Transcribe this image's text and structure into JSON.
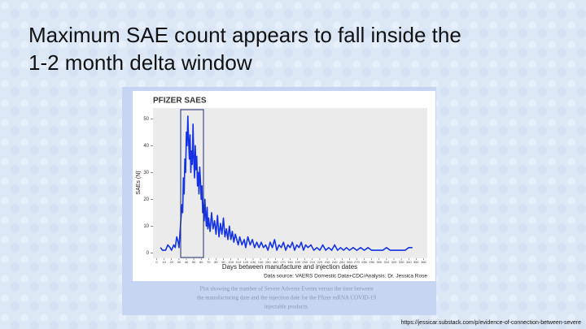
{
  "slide": {
    "title_lines": [
      "Maximum SAE count appears to fall inside the",
      "1-2 month delta window"
    ],
    "caption_lines": [
      "Plot showing the number of Severe Adverse Events versus the time between",
      "the manufacturing date and the injection date for the Pfizer mRNA COVID-19",
      "injectable products."
    ],
    "url": "https://jessicar.substack.com/p/evidence-of-connection-between-severe"
  },
  "chart_data": {
    "type": "line",
    "title": "PFIZER SAES",
    "x_label": "Days between manufacture and injection dates",
    "y_label": "SAEs (N)",
    "source": "Data source: VAERS Domestic Data+CDC/Analysis: Dr. Jessica Rose",
    "color": "#1432e6",
    "x": [
      5,
      8,
      12,
      15,
      18,
      20,
      23,
      25,
      27,
      29,
      30,
      32,
      34,
      35,
      36,
      37,
      38,
      39,
      40,
      41,
      42,
      43,
      44,
      45,
      46,
      47,
      48,
      49,
      50,
      51,
      52,
      53,
      54,
      55,
      56,
      57,
      58,
      59,
      60,
      61,
      62,
      63,
      64,
      65,
      66,
      67,
      68,
      69,
      70,
      72,
      74,
      76,
      78,
      80,
      82,
      84,
      86,
      88,
      90,
      92,
      94,
      96,
      98,
      100,
      102,
      104,
      106,
      108,
      110,
      112,
      115,
      118,
      120,
      123,
      126,
      129,
      132,
      135,
      138,
      141,
      144,
      147,
      150,
      153,
      156,
      159,
      162,
      165,
      168,
      171,
      174,
      177,
      180,
      183,
      186,
      189,
      192,
      195,
      198,
      201,
      204,
      208,
      212,
      216,
      220,
      224,
      228,
      232,
      236,
      240,
      244,
      248,
      252,
      256,
      260,
      265,
      270,
      275,
      280,
      285,
      290,
      295,
      300,
      305,
      310,
      315,
      320,
      325,
      330,
      335,
      340,
      345
    ],
    "values": [
      2,
      1,
      1,
      3,
      2,
      1,
      3,
      2,
      6,
      4,
      2,
      10,
      18,
      15,
      28,
      22,
      35,
      30,
      45,
      40,
      51,
      42,
      35,
      44,
      30,
      38,
      33,
      48,
      35,
      28,
      40,
      31,
      36,
      25,
      30,
      22,
      32,
      27,
      20,
      25,
      15,
      18,
      12,
      20,
      14,
      10,
      17,
      9,
      13,
      8,
      15,
      9,
      12,
      7,
      14,
      6,
      11,
      7,
      13,
      6,
      9,
      5,
      10,
      5,
      8,
      4,
      7,
      5,
      3,
      6,
      3,
      5,
      2,
      6,
      3,
      5,
      2,
      4,
      2,
      4,
      2,
      3,
      1,
      4,
      2,
      5,
      1,
      3,
      2,
      4,
      1,
      3,
      2,
      4,
      1,
      3,
      2,
      4,
      1,
      3,
      2,
      3,
      1,
      2,
      1,
      3,
      1,
      2,
      1,
      3,
      1,
      2,
      1,
      2,
      1,
      2,
      1,
      2,
      1,
      2,
      1,
      1,
      1,
      1,
      2,
      1,
      1,
      1,
      1,
      1,
      2,
      2
    ],
    "xlim": [
      -5,
      365
    ],
    "ylim": [
      -2,
      54
    ],
    "xticks": [
      0,
      10,
      20,
      30,
      40,
      50,
      60,
      70,
      80,
      90,
      100,
      110,
      120,
      130,
      140,
      150,
      160,
      170,
      180,
      190,
      200,
      210,
      220,
      230,
      240,
      250,
      260,
      270,
      280,
      290,
      300,
      310,
      320,
      330,
      340,
      350,
      360
    ],
    "yticks": [
      0,
      10,
      20,
      30,
      40,
      50
    ],
    "grid": false
  }
}
